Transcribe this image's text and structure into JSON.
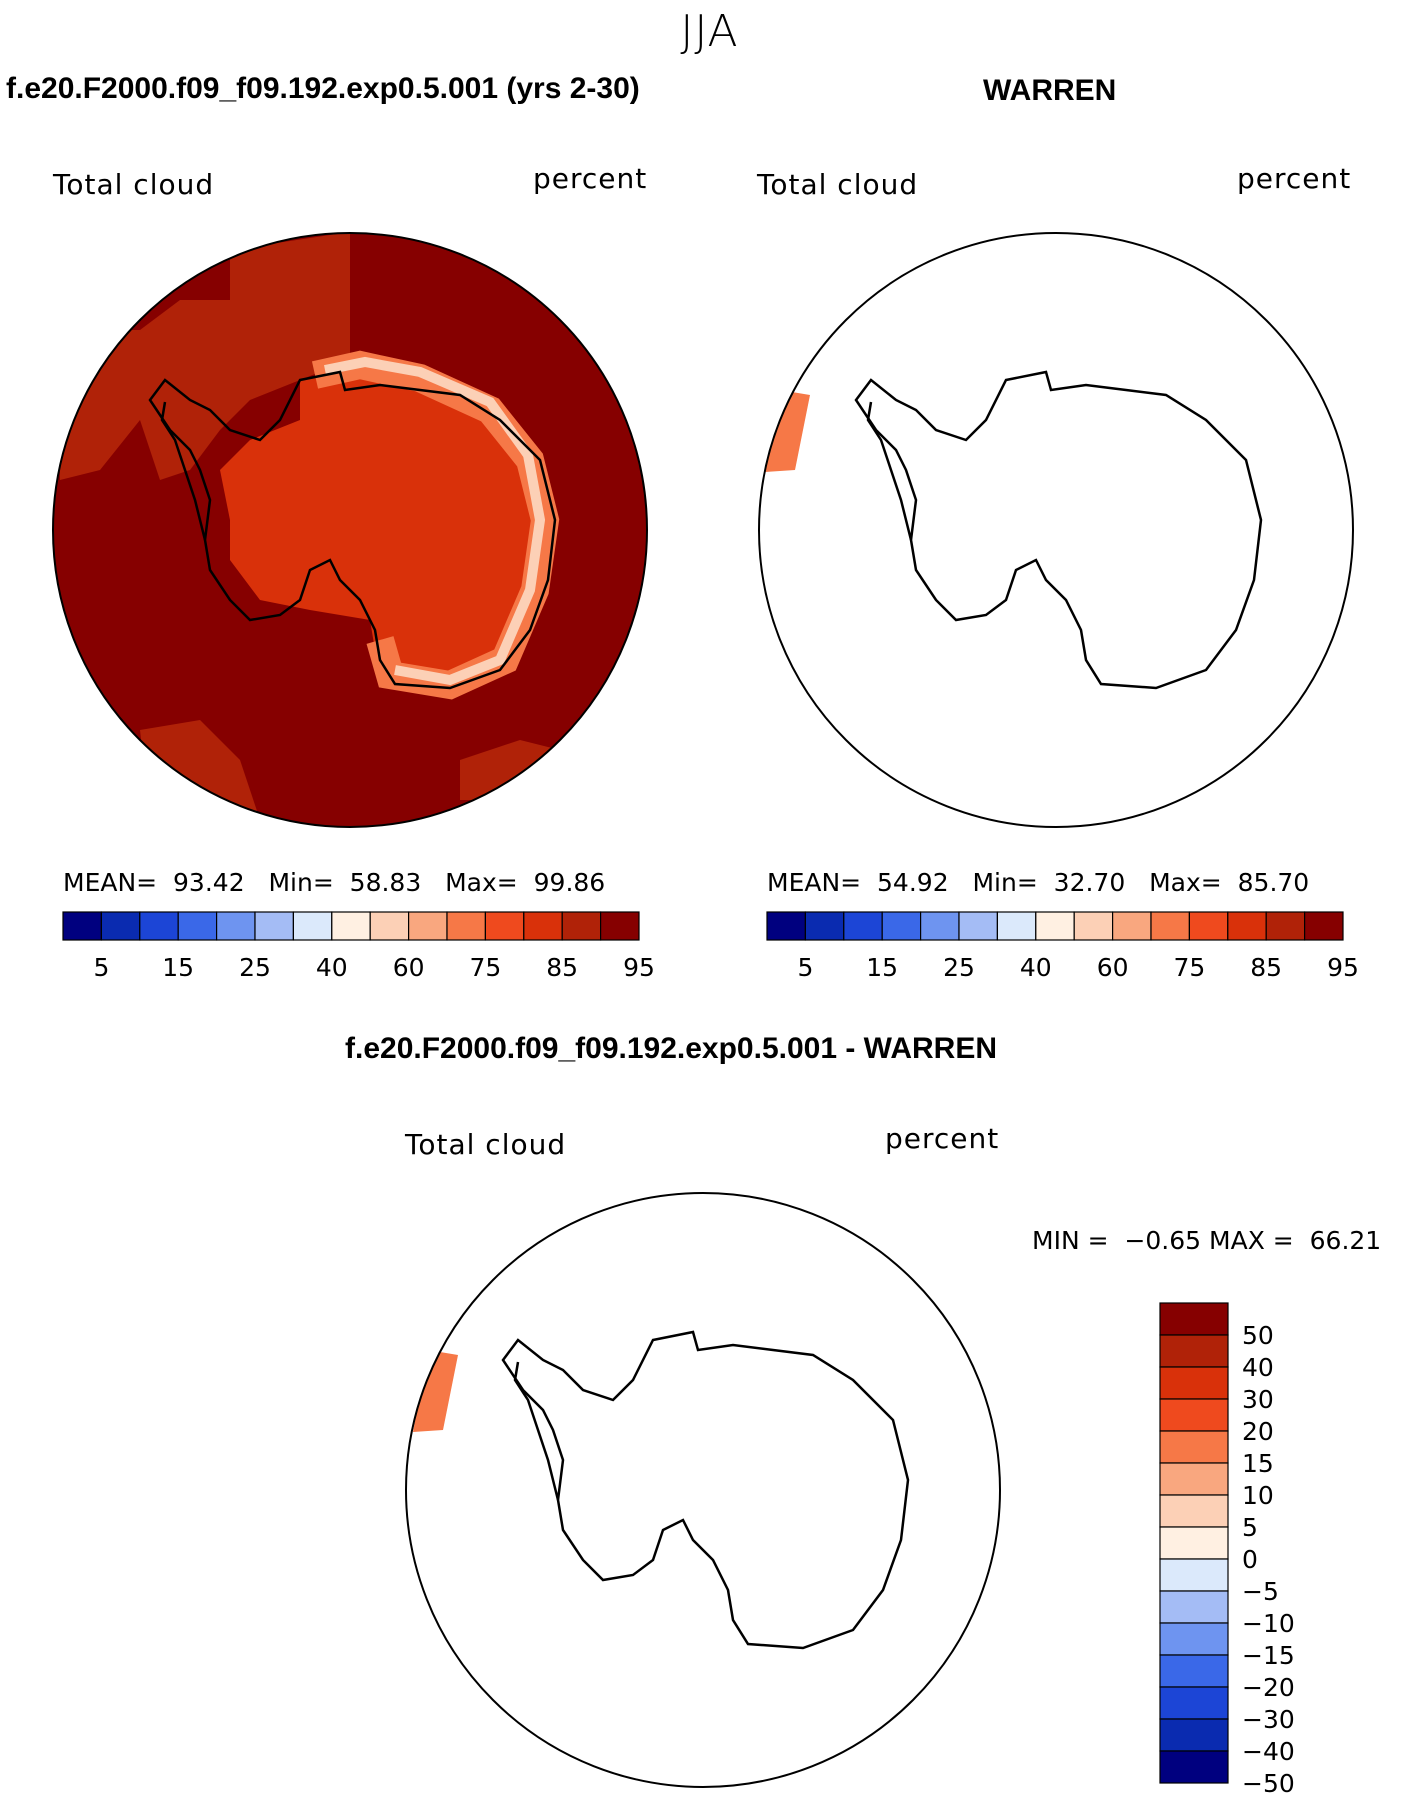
{
  "header": {
    "season": "JJA"
  },
  "panels": [
    {
      "title": "f.e20.F2000.f09_f09.192.exp0.5.001 (yrs 2-30)",
      "field_label": "Total cloud",
      "units_label": "percent",
      "stats": {
        "mean_label": "MEAN=",
        "mean": "93.42",
        "min_label": "Min=",
        "min": "58.83",
        "max_label": "Max=",
        "max": "99.86"
      },
      "colorbar": {
        "ticks": [
          "5",
          "15",
          "25",
          "40",
          "60",
          "75",
          "85",
          "95"
        ],
        "colors": [
          "#00007f",
          "#0a2bb0",
          "#1c45d6",
          "#3a68e8",
          "#6e94f0",
          "#a4bcf5",
          "#dbe9fb",
          "#fff0e2",
          "#fcd0b6",
          "#f9a77f",
          "#f67847",
          "#ef4a1e",
          "#d9310a",
          "#b02208",
          "#860000"
        ]
      }
    },
    {
      "title": "WARREN",
      "field_label": "Total cloud",
      "units_label": "percent",
      "stats": {
        "mean_label": "MEAN=",
        "mean": "54.92",
        "min_label": "Min=",
        "min": "32.70",
        "max_label": "Max=",
        "max": "85.70"
      },
      "colorbar": {
        "ticks": [
          "5",
          "15",
          "25",
          "40",
          "60",
          "75",
          "85",
          "95"
        ],
        "colors": [
          "#00007f",
          "#0a2bb0",
          "#1c45d6",
          "#3a68e8",
          "#6e94f0",
          "#a4bcf5",
          "#dbe9fb",
          "#fff0e2",
          "#fcd0b6",
          "#f9a77f",
          "#f67847",
          "#ef4a1e",
          "#d9310a",
          "#b02208",
          "#860000"
        ]
      }
    },
    {
      "title": "f.e20.F2000.f09_f09.192.exp0.5.001 - WARREN",
      "field_label": "Total cloud",
      "units_label": "percent",
      "stats": {
        "min_label": "MIN =",
        "min": "−0.65",
        "max_label": "MAX =",
        "max": "66.21"
      },
      "colorbar": {
        "ticks": [
          "50",
          "40",
          "30",
          "20",
          "15",
          "10",
          "5",
          "0",
          "−5",
          "−10",
          "−15",
          "−20",
          "−30",
          "−40",
          "−50"
        ],
        "colors": [
          "#860000",
          "#b02208",
          "#d9310a",
          "#ef4a1e",
          "#f67847",
          "#f9a77f",
          "#fcd0b6",
          "#fff0e2",
          "#dbe9fb",
          "#a4bcf5",
          "#6e94f0",
          "#3a68e8",
          "#1c45d6",
          "#0a2bb0",
          "#00007f"
        ]
      }
    }
  ],
  "map_colors": {
    "ocean_fill": "#860000",
    "band_fill": "#b02208",
    "coast_light": "#fcd0b6",
    "coast_mid": "#f67847",
    "interior": "#d9310a",
    "obs_strip": "#f67847"
  }
}
